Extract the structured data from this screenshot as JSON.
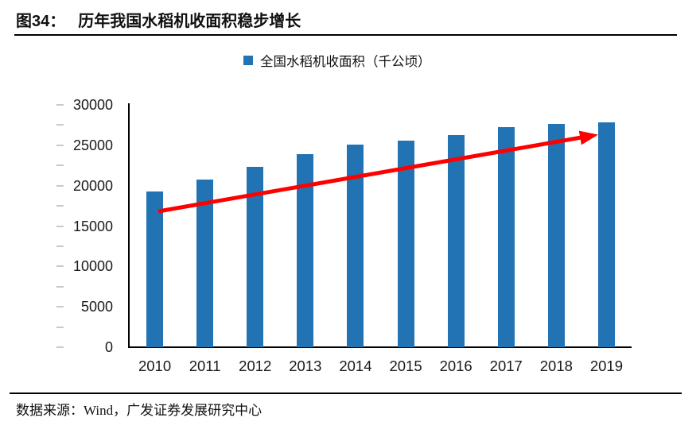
{
  "figure": {
    "label": "图34：",
    "title": "历年我国水稻机收面积稳步增长",
    "source": "数据来源：Wind，广发证券发展研究中心"
  },
  "legend": {
    "label": "全国水稻机收面积（千公顷）"
  },
  "colors": {
    "bar": "#2273B4",
    "arrow": "#FE0000",
    "axis": "#000000",
    "minor_tick": "#C9C9C9"
  },
  "chart_data": {
    "type": "bar",
    "title": "全国水稻机收面积（千公顷）",
    "categories": [
      "2010",
      "2011",
      "2012",
      "2013",
      "2014",
      "2015",
      "2016",
      "2017",
      "2018",
      "2019"
    ],
    "values": [
      19300,
      20800,
      22300,
      23900,
      25100,
      25600,
      26300,
      27200,
      27600,
      27800
    ],
    "xlabel": "",
    "ylabel": "",
    "ylim": [
      0,
      30000
    ],
    "ytick_step": 5000,
    "minor_tick_step": 2500,
    "yticks": [
      0,
      5000,
      10000,
      15000,
      20000,
      25000,
      30000
    ],
    "grid": false,
    "legend_position": "top-center",
    "annotations": [
      {
        "type": "trend-arrow",
        "description": "red upward trend arrow from 2010 bar to 2019 bar",
        "color": "#FE0000"
      }
    ]
  }
}
